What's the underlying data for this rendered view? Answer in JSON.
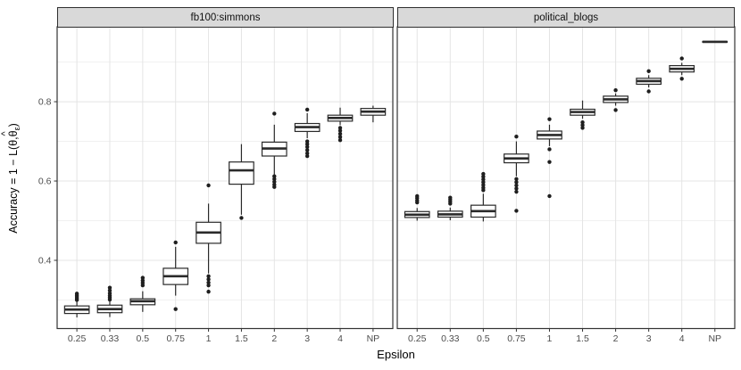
{
  "chart_data": {
    "type": "boxplot",
    "xlabel": "Epsilon",
    "ylabel": "Accuracy = 1 − L(θ,θ̂ε)",
    "ylabel_parts": {
      "pre": "Accuracy = 1 − L(θ,",
      "theta": "θ",
      "hat": "^",
      "sub": "ε",
      "post": ")"
    },
    "categories": [
      "0.25",
      "0.33",
      "0.5",
      "0.75",
      "1",
      "1.5",
      "2",
      "3",
      "4",
      "NP"
    ],
    "ylim": [
      0.228,
      0.989
    ],
    "yticks": [
      0.4,
      0.6,
      0.8
    ],
    "ytick_labels": [
      "0.4",
      "0.6",
      "0.8"
    ],
    "minor_yticks": [
      0.3,
      0.5,
      0.7,
      0.9
    ],
    "grid": true,
    "legend": "none",
    "facets": [
      {
        "title": "fb100:simmons",
        "boxes": [
          {
            "category": "0.25",
            "whisker_low": 0.256,
            "q1": 0.266,
            "median": 0.276,
            "q3": 0.285,
            "whisker_high": 0.296,
            "outliers": [
              0.3,
              0.304,
              0.308,
              0.312,
              0.316
            ]
          },
          {
            "category": "0.33",
            "whisker_low": 0.257,
            "q1": 0.268,
            "median": 0.277,
            "q3": 0.287,
            "whisker_high": 0.298,
            "outliers": [
              0.301,
              0.306,
              0.311,
              0.317,
              0.324,
              0.331
            ]
          },
          {
            "category": "0.5",
            "whisker_low": 0.27,
            "q1": 0.288,
            "median": 0.297,
            "q3": 0.303,
            "whisker_high": 0.322,
            "outliers": [
              0.337,
              0.343,
              0.349,
              0.356
            ]
          },
          {
            "category": "0.75",
            "whisker_low": 0.311,
            "q1": 0.339,
            "median": 0.36,
            "q3": 0.38,
            "whisker_high": 0.434,
            "outliers": [
              0.445,
              0.277
            ]
          },
          {
            "category": "1",
            "whisker_low": 0.367,
            "q1": 0.443,
            "median": 0.47,
            "q3": 0.496,
            "whisker_high": 0.543,
            "outliers": [
              0.589,
              0.36,
              0.352,
              0.344,
              0.337,
              0.321
            ]
          },
          {
            "category": "1.5",
            "whisker_low": 0.515,
            "q1": 0.592,
            "median": 0.627,
            "q3": 0.648,
            "whisker_high": 0.693,
            "outliers": [
              0.507
            ]
          },
          {
            "category": "2",
            "whisker_low": 0.614,
            "q1": 0.663,
            "median": 0.682,
            "q3": 0.698,
            "whisker_high": 0.742,
            "outliers": [
              0.77,
              0.612,
              0.605,
              0.598,
              0.591,
              0.585
            ]
          },
          {
            "category": "3",
            "whisker_low": 0.708,
            "q1": 0.725,
            "median": 0.736,
            "q3": 0.745,
            "whisker_high": 0.771,
            "outliers": [
              0.78,
              0.7,
              0.693,
              0.686,
              0.678,
              0.67,
              0.663
            ]
          },
          {
            "category": "4",
            "whisker_low": 0.741,
            "q1": 0.751,
            "median": 0.759,
            "q3": 0.766,
            "whisker_high": 0.785,
            "outliers": [
              0.734,
              0.727,
              0.719,
              0.711,
              0.703
            ]
          },
          {
            "category": "NP",
            "whisker_low": 0.748,
            "q1": 0.766,
            "median": 0.775,
            "q3": 0.783,
            "whisker_high": 0.79,
            "outliers": []
          }
        ]
      },
      {
        "title": "political_blogs",
        "boxes": [
          {
            "category": "0.25",
            "whisker_low": 0.5,
            "q1": 0.508,
            "median": 0.515,
            "q3": 0.523,
            "whisker_high": 0.532,
            "outliers": [
              0.546,
              0.551,
              0.557,
              0.562
            ]
          },
          {
            "category": "0.33",
            "whisker_low": 0.501,
            "q1": 0.509,
            "median": 0.516,
            "q3": 0.524,
            "whisker_high": 0.533,
            "outliers": [
              0.543,
              0.548,
              0.553,
              0.558
            ]
          },
          {
            "category": "0.5",
            "whisker_low": 0.498,
            "q1": 0.509,
            "median": 0.524,
            "q3": 0.539,
            "whisker_high": 0.568,
            "outliers": [
              0.577,
              0.583,
              0.59,
              0.597,
              0.604,
              0.611,
              0.618
            ]
          },
          {
            "category": "0.75",
            "whisker_low": 0.612,
            "q1": 0.646,
            "median": 0.657,
            "q3": 0.668,
            "whisker_high": 0.7,
            "outliers": [
              0.712,
              0.605,
              0.597,
              0.589,
              0.581,
              0.573,
              0.525
            ]
          },
          {
            "category": "1",
            "whisker_low": 0.688,
            "q1": 0.706,
            "median": 0.716,
            "q3": 0.726,
            "whisker_high": 0.742,
            "outliers": [
              0.756,
              0.68,
              0.648,
              0.562
            ]
          },
          {
            "category": "1.5",
            "whisker_low": 0.757,
            "q1": 0.766,
            "median": 0.774,
            "q3": 0.781,
            "whisker_high": 0.803,
            "outliers": [
              0.748,
              0.741,
              0.734
            ]
          },
          {
            "category": "2",
            "whisker_low": 0.79,
            "q1": 0.798,
            "median": 0.806,
            "q3": 0.814,
            "whisker_high": 0.821,
            "outliers": [
              0.829,
              0.779
            ]
          },
          {
            "category": "3",
            "whisker_low": 0.836,
            "q1": 0.844,
            "median": 0.852,
            "q3": 0.859,
            "whisker_high": 0.867,
            "outliers": [
              0.877,
              0.826
            ]
          },
          {
            "category": "4",
            "whisker_low": 0.867,
            "q1": 0.875,
            "median": 0.883,
            "q3": 0.891,
            "whisker_high": 0.898,
            "outliers": [
              0.909,
              0.858
            ]
          },
          {
            "category": "NP",
            "whisker_low": 0.95,
            "q1": 0.95,
            "median": 0.951,
            "q3": 0.952,
            "whisker_high": 0.952,
            "outliers": []
          }
        ]
      }
    ],
    "colors": {
      "box_fill": "#ffffff",
      "box_stroke": "#2a2a2a",
      "outlier": "#1f1f1f",
      "panel_border": "#333333",
      "strip_fill": "#d9d9d9",
      "grid_major": "#e4e4e4",
      "grid_minor": "#f1f1f1",
      "tick_label": "#4d4d4d",
      "axis_title": "#000000"
    }
  }
}
